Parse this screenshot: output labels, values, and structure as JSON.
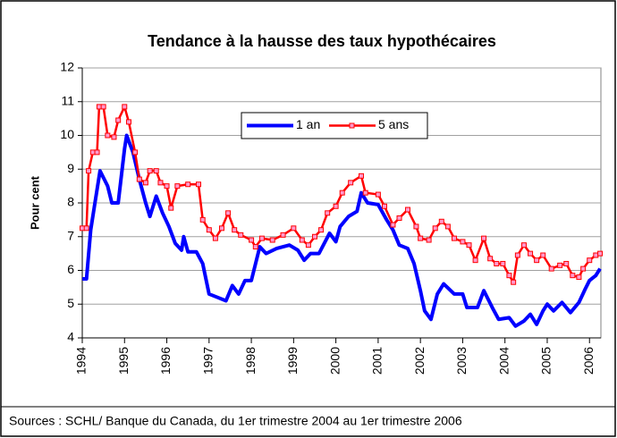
{
  "chart_data": {
    "type": "line",
    "title": "Tendance à la hausse des taux hypothécaires",
    "y_label": "Pour cent",
    "source": "Sources : SCHL/ Banque du Canada, du 1er trimestre 2004 au 1er trimestre 2006",
    "xlim": [
      1994,
      2006.27
    ],
    "xticks": [
      1994,
      1995,
      1996,
      1997,
      1998,
      1999,
      2000,
      2001,
      2002,
      2003,
      2004,
      2005,
      2006
    ],
    "ylim": [
      4,
      12
    ],
    "yticks": [
      4,
      5,
      6,
      7,
      8,
      9,
      10,
      11,
      12
    ],
    "grid": true,
    "legend": "top-center",
    "series": [
      {
        "name": "1 an",
        "color": "#0000ff",
        "x": [
          1994.0,
          1994.1,
          1994.2,
          1994.3,
          1994.42,
          1994.6,
          1994.7,
          1994.85,
          1995.0,
          1995.05,
          1995.2,
          1995.35,
          1995.5,
          1995.6,
          1995.75,
          1995.9,
          1996.05,
          1996.2,
          1996.35,
          1996.4,
          1996.5,
          1996.7,
          1996.85,
          1997.0,
          1997.2,
          1997.4,
          1997.55,
          1997.7,
          1997.85,
          1998.0,
          1998.2,
          1998.35,
          1998.6,
          1998.9,
          1999.1,
          1999.25,
          1999.4,
          1999.6,
          1999.85,
          2000.0,
          2000.1,
          2000.3,
          2000.5,
          2000.6,
          2000.75,
          2001.0,
          2001.2,
          2001.35,
          2001.5,
          2001.7,
          2001.85,
          2002.0,
          2002.1,
          2002.25,
          2002.4,
          2002.55,
          2002.8,
          2003.0,
          2003.1,
          2003.35,
          2003.5,
          2003.7,
          2003.85,
          2004.1,
          2004.25,
          2004.45,
          2004.6,
          2004.75,
          2004.9,
          2005.0,
          2005.15,
          2005.35,
          2005.55,
          2005.75,
          2005.9,
          2006.0,
          2006.15,
          2006.25
        ],
        "values": [
          5.75,
          5.75,
          7.2,
          8.0,
          8.95,
          8.5,
          8.0,
          8.0,
          9.6,
          10.0,
          9.5,
          8.7,
          8.0,
          7.6,
          8.2,
          7.7,
          7.3,
          6.8,
          6.6,
          7.0,
          6.55,
          6.55,
          6.2,
          5.3,
          5.2,
          5.1,
          5.55,
          5.3,
          5.7,
          5.7,
          6.7,
          6.5,
          6.65,
          6.75,
          6.6,
          6.3,
          6.5,
          6.5,
          7.1,
          6.85,
          7.3,
          7.6,
          7.75,
          8.3,
          8.0,
          7.95,
          7.5,
          7.2,
          6.75,
          6.65,
          6.2,
          5.4,
          4.8,
          4.55,
          5.3,
          5.6,
          5.3,
          5.3,
          4.9,
          4.9,
          5.4,
          4.9,
          4.55,
          4.6,
          4.35,
          4.5,
          4.7,
          4.4,
          4.8,
          5.0,
          4.8,
          5.05,
          4.75,
          5.05,
          5.45,
          5.7,
          5.85,
          6.05
        ]
      },
      {
        "name": "5 ans",
        "color": "#ff0000",
        "marker_color": "#ff99cc",
        "x": [
          1994.0,
          1994.1,
          1994.15,
          1994.25,
          1994.35,
          1994.4,
          1994.5,
          1994.6,
          1994.75,
          1994.85,
          1995.0,
          1995.1,
          1995.25,
          1995.35,
          1995.5,
          1995.6,
          1995.75,
          1995.85,
          1996.0,
          1996.1,
          1996.25,
          1996.5,
          1996.75,
          1996.85,
          1997.0,
          1997.15,
          1997.3,
          1997.45,
          1997.6,
          1997.75,
          1998.0,
          1998.1,
          1998.25,
          1998.5,
          1998.75,
          1999.0,
          1999.2,
          1999.35,
          1999.5,
          1999.65,
          1999.8,
          2000.0,
          2000.15,
          2000.35,
          2000.6,
          2000.7,
          2001.0,
          2001.15,
          2001.35,
          2001.5,
          2001.7,
          2001.9,
          2002.0,
          2002.2,
          2002.35,
          2002.5,
          2002.65,
          2002.8,
          2003.0,
          2003.15,
          2003.3,
          2003.5,
          2003.65,
          2003.8,
          2003.95,
          2004.1,
          2004.2,
          2004.3,
          2004.45,
          2004.6,
          2004.75,
          2004.9,
          2005.1,
          2005.3,
          2005.45,
          2005.6,
          2005.75,
          2005.85,
          2006.0,
          2006.15,
          2006.25
        ],
        "values": [
          7.25,
          7.25,
          8.95,
          9.5,
          9.5,
          10.85,
          10.85,
          10.0,
          9.95,
          10.45,
          10.85,
          10.4,
          9.5,
          8.7,
          8.6,
          8.95,
          8.95,
          8.6,
          8.5,
          7.85,
          8.5,
          8.55,
          8.55,
          7.5,
          7.2,
          6.95,
          7.25,
          7.7,
          7.2,
          7.05,
          6.9,
          6.7,
          6.95,
          6.9,
          7.05,
          7.25,
          6.9,
          6.75,
          7.0,
          7.2,
          7.7,
          7.9,
          8.3,
          8.6,
          8.8,
          8.3,
          8.25,
          7.9,
          7.35,
          7.55,
          7.8,
          7.3,
          6.95,
          6.9,
          7.25,
          7.45,
          7.3,
          6.95,
          6.85,
          6.75,
          6.3,
          6.95,
          6.35,
          6.2,
          6.2,
          5.85,
          5.65,
          6.45,
          6.75,
          6.5,
          6.3,
          6.45,
          6.05,
          6.15,
          6.2,
          5.85,
          5.8,
          6.05,
          6.3,
          6.45,
          6.5
        ]
      }
    ]
  }
}
